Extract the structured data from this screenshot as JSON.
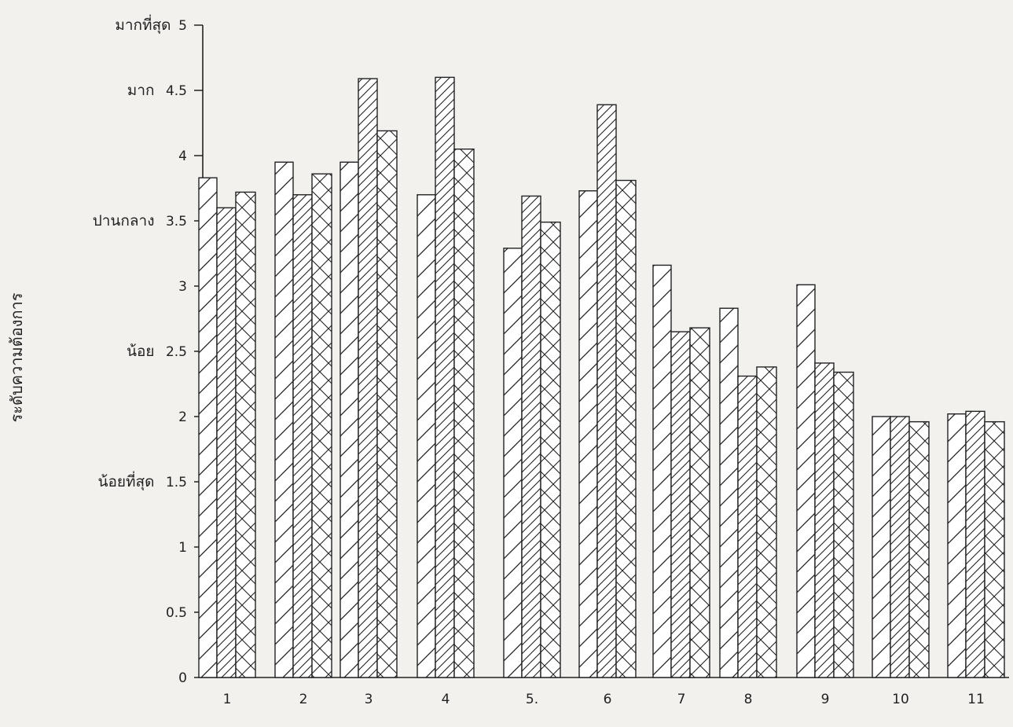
{
  "chart_data": {
    "type": "bar",
    "title": "",
    "xlabel": "",
    "ylabel": "ระดับความต้องการ",
    "ylim": [
      0,
      5
    ],
    "y_ticks": [
      "0",
      "0.5",
      "1",
      "1.5",
      "2",
      "2.5",
      "3",
      "3.5",
      "4",
      "4.5",
      "5"
    ],
    "y_level_labels": [
      {
        "value": 5,
        "label": "มากที่สุด"
      },
      {
        "value": 4.5,
        "label": "มาก"
      },
      {
        "value": 3.5,
        "label": "ปานกลาง"
      },
      {
        "value": 2.5,
        "label": "น้อย"
      },
      {
        "value": 1.5,
        "label": "น้อยที่สุด"
      }
    ],
    "categories": [
      "1",
      "2",
      "3",
      "4",
      "5.",
      "6",
      "7",
      "8",
      "9",
      "10",
      "11"
    ],
    "series": [
      {
        "pattern": "diagonal",
        "values": [
          3.83,
          3.95,
          3.95,
          3.7,
          3.29,
          3.73,
          3.16,
          2.83,
          3.01,
          2.0,
          2.02
        ]
      },
      {
        "pattern": "dense-diagonal",
        "values": [
          3.6,
          3.7,
          4.59,
          4.6,
          3.69,
          4.39,
          2.65,
          2.31,
          2.41,
          2.0,
          2.04
        ]
      },
      {
        "pattern": "crosshatch",
        "values": [
          3.72,
          3.86,
          4.19,
          4.05,
          3.49,
          3.81,
          2.68,
          2.38,
          2.34,
          1.96,
          1.96
        ]
      }
    ],
    "grid": false,
    "legend": "none"
  }
}
